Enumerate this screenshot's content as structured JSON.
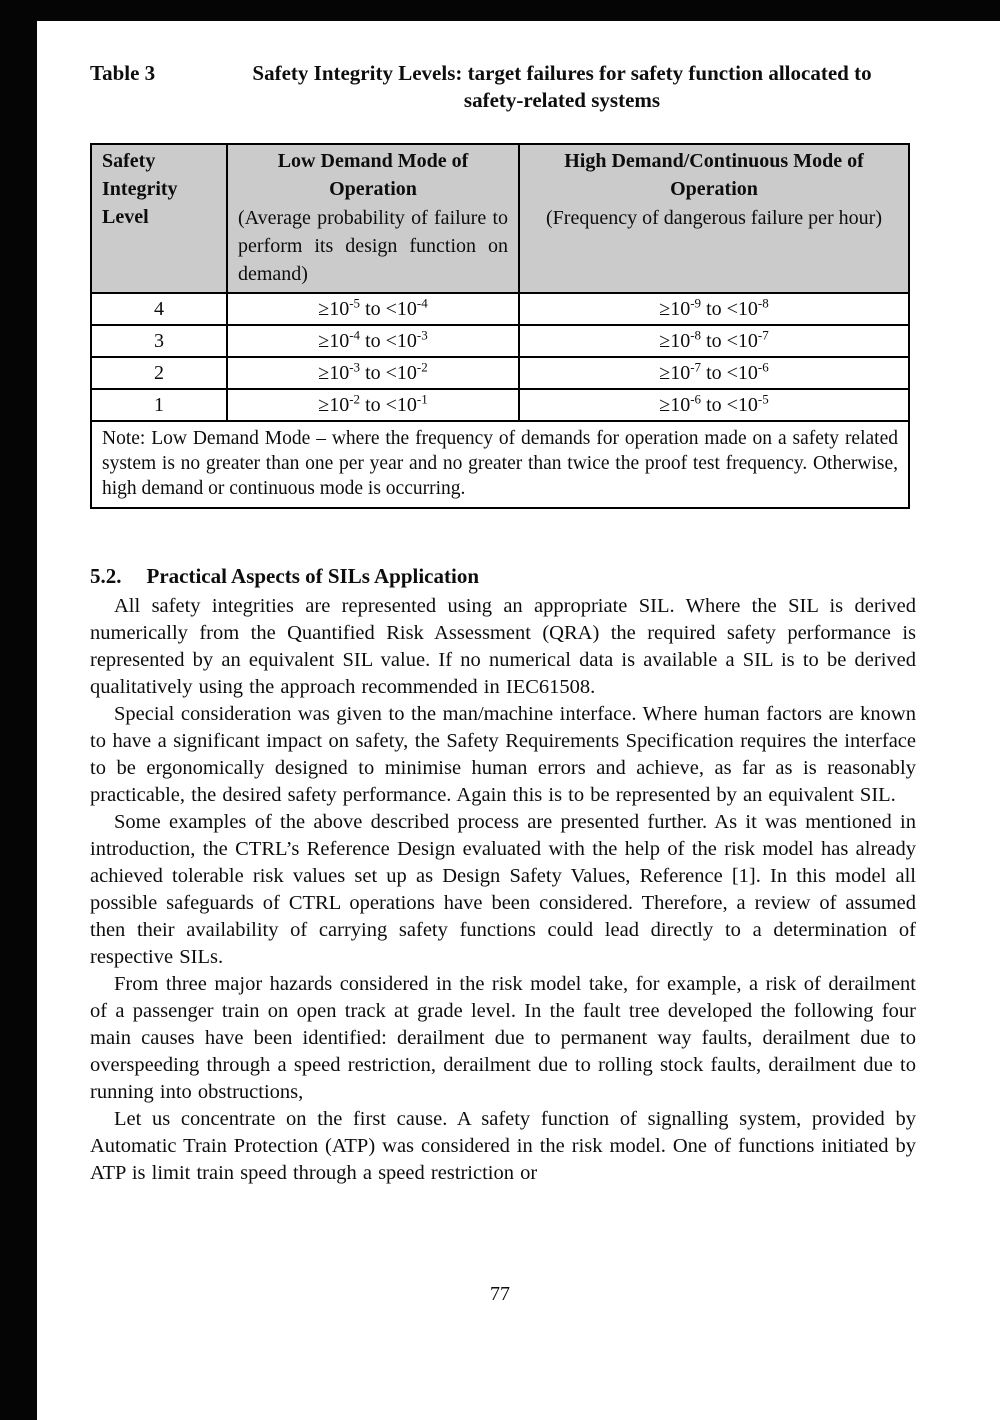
{
  "caption": {
    "label": "Table 3",
    "title_line1": "Safety Integrity Levels: target failures for safety function allocated to",
    "title_line2": "safety-related systems"
  },
  "table": {
    "header": {
      "col1": "Safety Integrity Level",
      "col2_title": "Low Demand Mode of Operation",
      "col2_sub": "(Average probability of failure to perform its design function on demand)",
      "col3_title": "High Demand/Continuous Mode of Operation",
      "col3_sub": "(Frequency of dangerous failure per hour)"
    },
    "rows": [
      {
        "level": "4",
        "low": "≥10{-5} to <10{-4}",
        "high": "≥10{-9} to <10{-8}"
      },
      {
        "level": "3",
        "low": "≥10{-4} to <10{-3}",
        "high": "≥10{-8} to <10{-7}"
      },
      {
        "level": "2",
        "low": "≥10{-3} to <10{-2}",
        "high": "≥10{-7} to <10{-6}"
      },
      {
        "level": "1",
        "low": "≥10{-2} to <10{-1}",
        "high": "≥10{-6} to <10{-5}"
      }
    ],
    "note": "Note: Low Demand Mode – where the frequency of demands for operation made on a safety related system is no greater than one per year and no greater than twice the proof test frequency.  Otherwise, high demand or continuous mode is occurring."
  },
  "section": {
    "number": "5.2.",
    "title": "Practical Aspects of SILs Application",
    "paragraphs": [
      "All safety integrities are represented using an appropriate SIL.  Where the SIL is derived numerically from the Quantified Risk Assessment (QRA) the required safety performance is represented by an equivalent SIL value.  If no numerical data is available a SIL is to be derived qualitatively using the approach recommended in IEC61508.",
      "Special consideration was given to the man/machine interface.  Where human factors are known to have a significant impact on safety, the Safety Requirements Specification requires the interface to be ergonomically designed to minimise human errors and achieve, as far as is reasonably practicable, the desired safety performance.  Again this is to be represented by an equivalent SIL.",
      "Some examples of the above described process are presented further.  As it was mentioned in introduction, the CTRL’s Reference Design evaluated with the help of the risk model has already achieved tolerable risk values set up as Design Safety Values, Reference [1].  In this model all possible safeguards of CTRL operations have been considered.  Therefore, a review of assumed then their availability of carrying safety functions could lead directly to a determination of respective SILs.",
      "From three major hazards considered in the risk model take, for example, a risk of derailment of a passenger train on open track at grade level.  In the fault tree developed the following four main causes have been identified: derailment due to permanent way faults, derailment due to overspeeding through a speed restriction, derailment due to rolling stock faults, derailment due to running into obstructions,",
      "Let us concentrate on the first cause.  A safety function of signalling system, provided by Automatic Train Protection (ATP) was considered in the risk model.  One of functions initiated by ATP is limit train speed through a speed restriction or"
    ]
  },
  "page_number": "77"
}
